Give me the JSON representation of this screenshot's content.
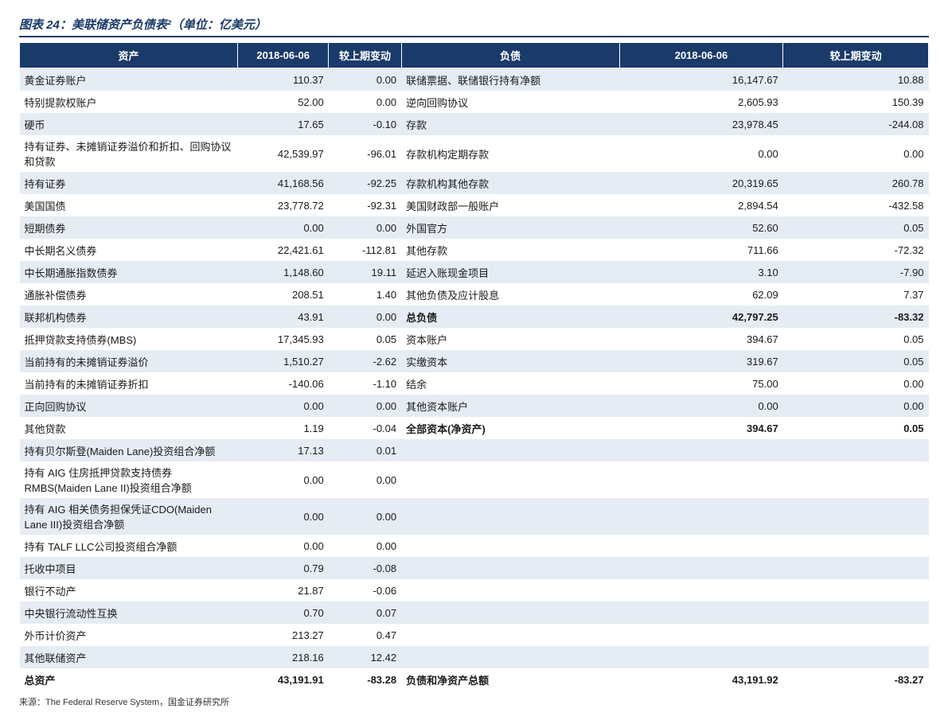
{
  "title": "图表 24：美联储资产负债表²（单位：亿美元）",
  "source": "来源：The Federal Reserve System，国金证券研究所",
  "colors": {
    "header_bg": "#1a3a6a",
    "header_text": "#ffffff",
    "band_a": "#e6ecf4",
    "band_b": "#ffffff",
    "title_color": "#1a3a6a",
    "border_rule": "#1a3a6a"
  },
  "headers": {
    "left_label": "资产",
    "left_v1": "2018-06-06",
    "left_v2": "较上期变动",
    "right_label": "负债",
    "right_v1": "2018-06-06",
    "right_v2": "较上期变动"
  },
  "rows": [
    {
      "l": {
        "label": "黄金证券账户",
        "v1": "110.37",
        "v2": "0.00",
        "ind": 0
      },
      "r": {
        "label": "联储票据、联储银行持有净额",
        "v1": "16,147.67",
        "v2": "10.88",
        "ind": 0
      }
    },
    {
      "l": {
        "label": "特别提款权账户",
        "v1": "52.00",
        "v2": "0.00",
        "ind": 0
      },
      "r": {
        "label": "逆向回购协议",
        "v1": "2,605.93",
        "v2": "150.39",
        "ind": 0
      }
    },
    {
      "l": {
        "label": "硬币",
        "v1": "17.65",
        "v2": "-0.10",
        "ind": 0
      },
      "r": {
        "label": "存款",
        "v1": "23,978.45",
        "v2": "-244.08",
        "ind": 0
      }
    },
    {
      "l": {
        "label": "持有证券、未摊销证券溢价和折扣、回购协议和贷款",
        "v1": "42,539.97",
        "v2": "-96.01",
        "ind": 0
      },
      "r": {
        "label": "存款机构定期存款",
        "v1": "0.00",
        "v2": "0.00",
        "ind": 1
      }
    },
    {
      "l": {
        "label": "持有证券",
        "v1": "41,168.56",
        "v2": "-92.25",
        "ind": 1
      },
      "r": {
        "label": "存款机构其他存款",
        "v1": "20,319.65",
        "v2": "260.78",
        "ind": 1
      }
    },
    {
      "l": {
        "label": "美国国债",
        "v1": "23,778.72",
        "v2": "-92.31",
        "ind": 2
      },
      "r": {
        "label": "美国财政部一般账户",
        "v1": "2,894.54",
        "v2": "-432.58",
        "ind": 1
      }
    },
    {
      "l": {
        "label": "短期债券",
        "v1": "0.00",
        "v2": "0.00",
        "ind": 3
      },
      "r": {
        "label": "外国官方",
        "v1": "52.60",
        "v2": "0.05",
        "ind": 1
      }
    },
    {
      "l": {
        "label": "中长期名义债券",
        "v1": "22,421.61",
        "v2": "-112.81",
        "ind": 3
      },
      "r": {
        "label": "其他存款",
        "v1": "711.66",
        "v2": "-72.32",
        "ind": 1
      }
    },
    {
      "l": {
        "label": "中长期通胀指数债券",
        "v1": "1,148.60",
        "v2": "19.11",
        "ind": 3
      },
      "r": {
        "label": "延迟入账现金项目",
        "v1": "3.10",
        "v2": "-7.90",
        "ind": 0
      }
    },
    {
      "l": {
        "label": "通胀补偿债券",
        "v1": "208.51",
        "v2": "1.40",
        "ind": 3
      },
      "r": {
        "label": "其他负债及应计股息",
        "v1": "62.09",
        "v2": "7.37",
        "ind": 0
      }
    },
    {
      "l": {
        "label": "联邦机构债券",
        "v1": "43.91",
        "v2": "0.00",
        "ind": 2
      },
      "r": {
        "label": "总负债",
        "v1": "42,797.25",
        "v2": "-83.32",
        "ind": 0,
        "bold": true
      }
    },
    {
      "l": {
        "label": "抵押贷款支持债券(MBS)",
        "v1": "17,345.93",
        "v2": "0.05",
        "ind": 2
      },
      "r": {
        "label": "资本账户",
        "v1": "394.67",
        "v2": "0.05",
        "ind": 0
      }
    },
    {
      "l": {
        "label": "当前持有的未摊销证券溢价",
        "v1": "1,510.27",
        "v2": "-2.62",
        "ind": 1
      },
      "r": {
        "label": "实缴资本",
        "v1": "319.67",
        "v2": "0.05",
        "ind": 1
      }
    },
    {
      "l": {
        "label": "当前持有的未摊销证券折扣",
        "v1": "-140.06",
        "v2": "-1.10",
        "ind": 1
      },
      "r": {
        "label": "结余",
        "v1": "75.00",
        "v2": "0.00",
        "ind": 1
      }
    },
    {
      "l": {
        "label": "正向回购协议",
        "v1": "0.00",
        "v2": "0.00",
        "ind": 1
      },
      "r": {
        "label": "其他资本账户",
        "v1": "0.00",
        "v2": "0.00",
        "ind": 1
      }
    },
    {
      "l": {
        "label": "其他贷款",
        "v1": "1.19",
        "v2": "-0.04",
        "ind": 1
      },
      "r": {
        "label": "全部资本(净资产)",
        "v1": "394.67",
        "v2": "0.05",
        "ind": 0,
        "bold": true
      }
    },
    {
      "l": {
        "label": "持有贝尔斯登(Maiden Lane)投资组合净额",
        "v1": "17.13",
        "v2": "0.01",
        "ind": 0
      },
      "r": null
    },
    {
      "l": {
        "label": "持有 AIG 住房抵押贷款支持债券RMBS(Maiden Lane II)投资组合净额",
        "v1": "0.00",
        "v2": "0.00",
        "ind": 0
      },
      "r": null
    },
    {
      "l": {
        "label": "持有 AIG 相关债务担保凭证CDO(Maiden Lane III)投资组合净额",
        "v1": "0.00",
        "v2": "0.00",
        "ind": 0
      },
      "r": null
    },
    {
      "l": {
        "label": "持有 TALF LLC公司投资组合净额",
        "v1": "0.00",
        "v2": "0.00",
        "ind": 0
      },
      "r": null
    },
    {
      "l": {
        "label": "托收中项目",
        "v1": "0.79",
        "v2": "-0.08",
        "ind": 0
      },
      "r": null
    },
    {
      "l": {
        "label": "银行不动产",
        "v1": "21.87",
        "v2": "-0.06",
        "ind": 0
      },
      "r": null
    },
    {
      "l": {
        "label": "中央银行流动性互换",
        "v1": "0.70",
        "v2": "0.07",
        "ind": 0
      },
      "r": null
    },
    {
      "l": {
        "label": "外币计价资产",
        "v1": "213.27",
        "v2": "0.47",
        "ind": 0
      },
      "r": null
    },
    {
      "l": {
        "label": "其他联储资产",
        "v1": "218.16",
        "v2": "12.42",
        "ind": 0
      },
      "r": null
    },
    {
      "l": {
        "label": "总资产",
        "v1": "43,191.91",
        "v2": "-83.28",
        "ind": 0,
        "bold": true
      },
      "r": {
        "label": "负债和净资产总额",
        "v1": "43,191.92",
        "v2": "-83.27",
        "ind": 0,
        "bold": true
      }
    }
  ]
}
